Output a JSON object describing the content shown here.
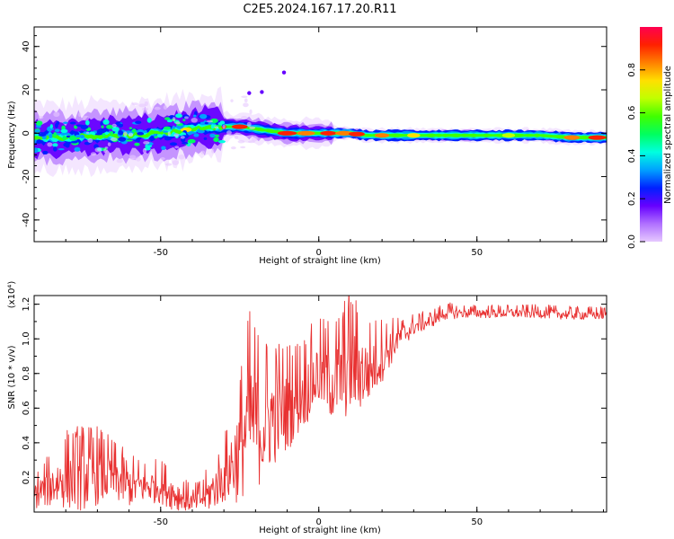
{
  "title": "C2E5.2024.167.17.20.R11",
  "chart_data": [
    {
      "type": "heatmap",
      "xlabel": "Height of straight line (km)",
      "ylabel": "Frequency (Hz)",
      "xlim": [
        -90,
        91
      ],
      "ylim": [
        -50,
        49
      ],
      "xticks": [
        -50,
        0,
        50
      ],
      "yticks": [
        -40,
        -20,
        0,
        20,
        40
      ],
      "colorbar": {
        "label": "Normalized spectral amplitude",
        "range": [
          0,
          1
        ],
        "ticks": [
          0.0,
          0.2,
          0.4,
          0.6,
          0.8
        ],
        "colors": [
          "#e6c8ff",
          "#b070ff",
          "#6600ff",
          "#0020ff",
          "#00a0ff",
          "#00ffe0",
          "#00ff60",
          "#40ff00",
          "#c0ff00",
          "#ffe000",
          "#ff8000",
          "#ff2000",
          "#ff0050"
        ]
      },
      "ridge": {
        "x": [
          -90,
          -80,
          -70,
          -60,
          -50,
          -45,
          -40,
          -35,
          -30,
          -25,
          -20,
          -15,
          -10,
          -5,
          0,
          5,
          10,
          15,
          20,
          30,
          40,
          50,
          60,
          70,
          80,
          90
        ],
        "y": [
          -2,
          -2,
          -1,
          -1,
          0,
          1,
          2,
          3,
          3,
          3,
          2,
          1,
          0,
          0,
          0,
          0,
          0,
          -1,
          -1,
          -1,
          -1,
          -1,
          -1,
          -1,
          -2,
          -2
        ]
      },
      "outliers": [
        {
          "x": -22,
          "y": 18.5
        },
        {
          "x": -18,
          "y": 19
        },
        {
          "x": -11,
          "y": 28
        }
      ]
    },
    {
      "type": "line",
      "xlabel": "Height of straight line (km)",
      "ylabel": "SNR (10 * v/v)",
      "multiplier": "(x10⁴)",
      "xlim": [
        -90,
        91
      ],
      "ylim": [
        0,
        1.25
      ],
      "xticks": [
        -50,
        0,
        50
      ],
      "yticks": [
        0.2,
        0.4,
        0.6,
        0.8,
        1.0,
        1.2
      ],
      "color": "#e83030",
      "series": [
        {
          "x": [
            -90,
            -85,
            -80,
            -75,
            -70,
            -65,
            -60,
            -55,
            -50,
            -45,
            -40,
            -35,
            -30,
            -25,
            -22,
            -18,
            -15,
            -10,
            -5,
            0,
            5,
            10,
            15,
            20,
            25,
            30,
            35,
            40,
            45,
            50,
            60,
            70,
            80,
            90
          ],
          "values": [
            0.1,
            0.15,
            0.2,
            0.2,
            0.22,
            0.2,
            0.15,
            0.15,
            0.15,
            0.1,
            0.05,
            0.1,
            0.2,
            0.35,
            0.55,
            0.5,
            0.55,
            0.6,
            0.7,
            0.8,
            0.75,
            0.85,
            0.8,
            0.9,
            1.0,
            1.07,
            1.1,
            1.15,
            1.15,
            1.15,
            1.15,
            1.15,
            1.14,
            1.14
          ],
          "spread": [
            0.08,
            0.12,
            0.18,
            0.2,
            0.18,
            0.14,
            0.12,
            0.1,
            0.1,
            0.1,
            0.06,
            0.1,
            0.15,
            0.3,
            0.4,
            0.35,
            0.3,
            0.25,
            0.22,
            0.2,
            0.25,
            0.3,
            0.2,
            0.15,
            0.08,
            0.05,
            0.04,
            0.04,
            0.03,
            0.03,
            0.03,
            0.03,
            0.03,
            0.03
          ]
        }
      ]
    }
  ]
}
